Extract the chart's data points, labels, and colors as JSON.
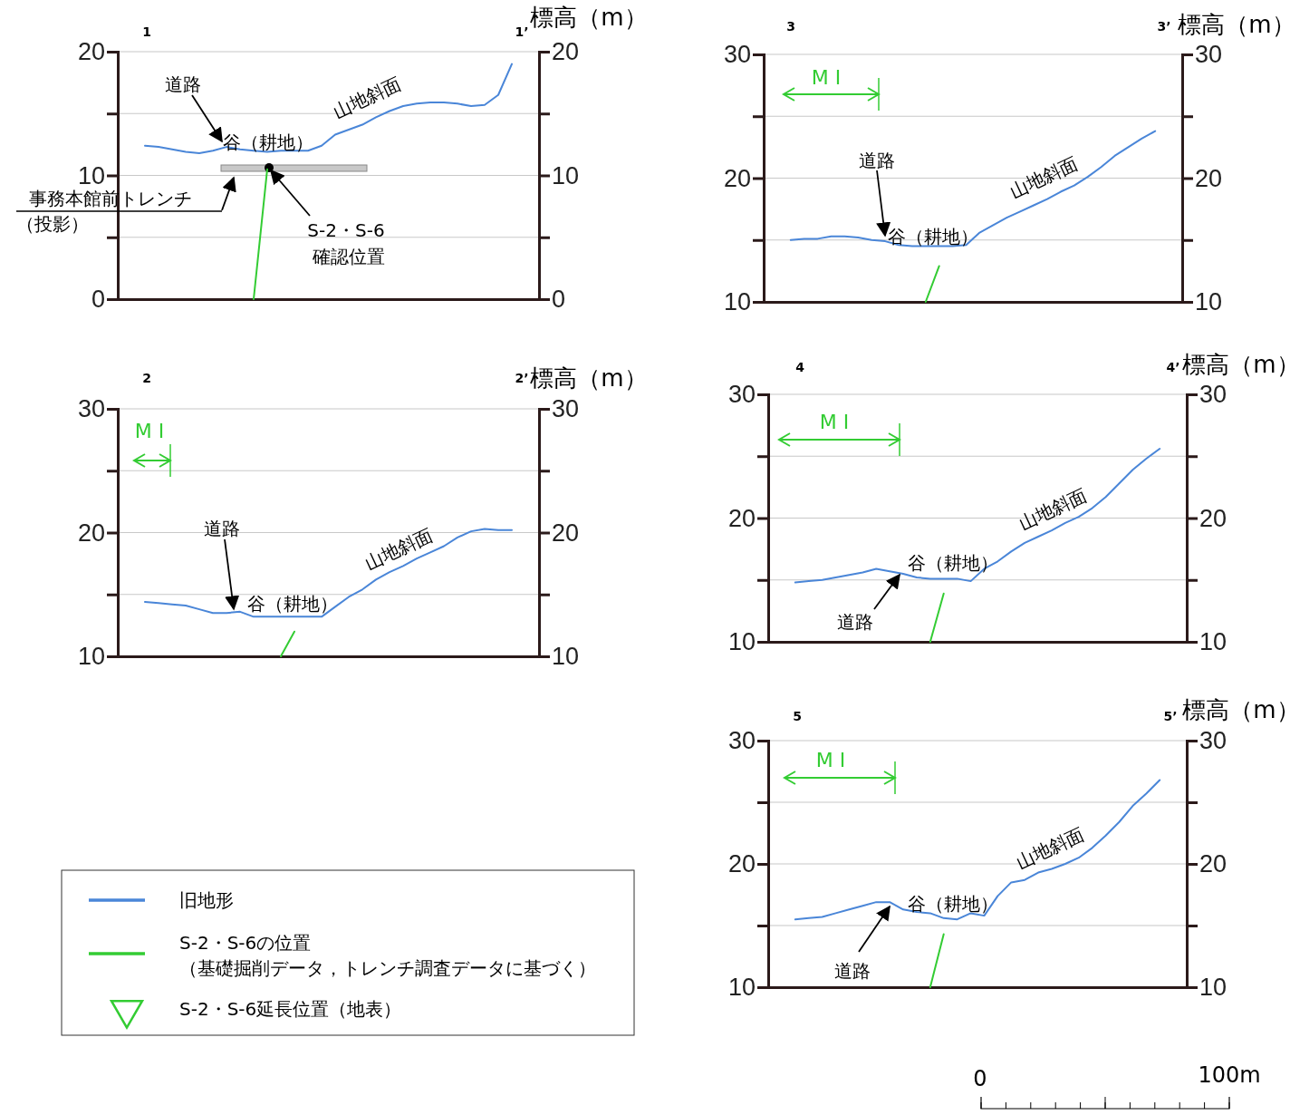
{
  "chart_data": [
    {
      "type": "line",
      "y2label": "標高（m）",
      "categories": [
        null,
        null,
        null,
        null,
        null,
        null,
        null,
        null,
        null,
        null,
        null,
        null,
        null,
        null,
        null,
        null,
        null,
        null,
        null,
        null,
        null,
        null,
        null,
        null,
        null,
        null,
        null,
        null,
        null,
        null,
        null,
        null
      ],
      "series": [
        {
          "name": "旧地形",
          "color": "#4a86d8",
          "values": [
            null,
            null,
            12.4,
            12.3,
            12.1,
            11.9,
            11.8,
            12.0,
            12.3,
            12.1,
            12.0,
            11.9,
            12.0,
            12.0,
            12.0,
            12.4,
            13.3,
            13.7,
            14.1,
            14.7,
            15.2,
            15.6,
            15.8,
            15.9,
            15.9,
            15.8,
            15.6,
            15.7,
            16.5,
            19.0,
            null,
            null
          ]
        },
        {
          "name": "S-2・S-6の位置（基礎掘削データ，トレンチ調査データに基づく）",
          "color": "#33cc33",
          "values": [
            null,
            null,
            null,
            null,
            null,
            null,
            null,
            null,
            null,
            null,
            0,
            10.5,
            null,
            null,
            null,
            null,
            null,
            null,
            null,
            null,
            null,
            null,
            null,
            null,
            null,
            null,
            null,
            null,
            null,
            null,
            null,
            null
          ]
        },
        {
          "name": "S-2・S-6延長位置（地表）",
          "color": "#33cc33",
          "type": "scatter",
          "marker": "triangle",
          "values": [
            null,
            null,
            null,
            null,
            null,
            null,
            null,
            null,
            null,
            null,
            null,
            null,
            null,
            null,
            null,
            null,
            null,
            null,
            null,
            null,
            null,
            null,
            null,
            null,
            null,
            null,
            null,
            null,
            null,
            null,
            null,
            null
          ]
        }
      ],
      "ylim": [
        0,
        20
      ],
      "yticks": [
        0,
        {
          "value": 5,
          "label": null
        },
        10,
        {
          "value": 15,
          "label": null
        },
        20
      ],
      "y2lim": [
        0,
        20
      ],
      "y2ticks": [
        0,
        {
          "value": 5,
          "label": null
        },
        10,
        {
          "value": 15,
          "label": null
        },
        20
      ],
      "grid": "y",
      "legend": "bottom left",
      "annotations": [
        "1",
        "1’",
        "道路",
        "谷（耕地）",
        "山地斜面",
        "事務本館前トレンチ",
        "（投影）",
        "S-2・S-6",
        "確認位置"
      ]
    },
    {
      "type": "line",
      "y2label": "標高（m）",
      "categories": [
        null,
        null,
        null,
        null,
        null,
        null,
        null,
        null,
        null,
        null,
        null,
        null,
        null,
        null,
        null,
        null,
        null,
        null,
        null,
        null,
        null,
        null,
        null,
        null,
        null,
        null,
        null,
        null,
        null,
        null,
        null,
        null
      ],
      "series": [
        {
          "color": "#4a86d8",
          "values": [
            null,
            null,
            14.4,
            14.3,
            14.2,
            14.1,
            13.8,
            13.5,
            13.5,
            13.6,
            13.2,
            13.2,
            13.2,
            13.2,
            13.2,
            13.2,
            14.0,
            14.8,
            15.4,
            16.2,
            16.8,
            17.3,
            17.9,
            18.4,
            18.9,
            19.6,
            20.1,
            20.3,
            20.2,
            20.2,
            null,
            null
          ]
        },
        {
          "color": "#33cc33",
          "values": [
            null,
            null,
            null,
            null,
            null,
            null,
            null,
            null,
            null,
            null,
            null,
            null,
            10,
            12.0,
            null,
            null,
            null,
            null,
            null,
            null,
            null,
            null,
            null,
            null,
            null,
            null,
            null,
            null,
            null,
            null,
            null,
            null
          ]
        }
      ],
      "ylim": [
        10,
        30
      ],
      "yticks": [
        10,
        {
          "value": 15,
          "label": null
        },
        20,
        {
          "value": 25,
          "label": null
        },
        30
      ],
      "y2lim": [
        10,
        30
      ],
      "y2ticks": [
        10,
        {
          "value": 15,
          "label": null
        },
        20,
        {
          "value": 25,
          "label": null
        },
        30
      ],
      "grid": "y",
      "annotations": [
        "2",
        "2’",
        "道路",
        "谷（耕地）",
        "山地斜面",
        "M I"
      ]
    },
    {
      "type": "line",
      "y2label": "標高（m）",
      "categories": [
        null,
        null,
        null,
        null,
        null,
        null,
        null,
        null,
        null,
        null,
        null,
        null,
        null,
        null,
        null,
        null,
        null,
        null,
        null,
        null,
        null,
        null,
        null,
        null,
        null,
        null,
        null,
        null,
        null,
        null,
        null,
        null
      ],
      "series": [
        {
          "color": "#4a86d8",
          "values": [
            null,
            null,
            15.0,
            15.1,
            15.1,
            15.3,
            15.3,
            15.2,
            15.0,
            14.9,
            14.6,
            14.5,
            14.5,
            14.5,
            14.5,
            14.6,
            15.6,
            16.2,
            16.8,
            17.3,
            17.8,
            18.3,
            18.9,
            19.4,
            20.1,
            20.9,
            21.8,
            22.5,
            23.2,
            23.8,
            null,
            null
          ]
        },
        {
          "color": "#33cc33",
          "values": [
            null,
            null,
            null,
            null,
            null,
            null,
            null,
            null,
            null,
            null,
            null,
            null,
            10,
            12.9,
            null,
            null,
            null,
            null,
            null,
            null,
            null,
            null,
            null,
            null,
            null,
            null,
            null,
            null,
            null,
            null,
            null,
            null
          ]
        }
      ],
      "ylim": [
        10,
        30
      ],
      "yticks": [
        10,
        {
          "value": 15,
          "label": null
        },
        20,
        {
          "value": 25,
          "label": null
        },
        30
      ],
      "y2lim": [
        10,
        30
      ],
      "y2ticks": [
        10,
        {
          "value": 15,
          "label": null
        },
        20,
        {
          "value": 25,
          "label": null
        },
        30
      ],
      "grid": "y",
      "annotations": [
        "3",
        "3’",
        "道路",
        "谷（耕地）",
        "山地斜面",
        "M I"
      ]
    },
    {
      "type": "line",
      "y2label": "標高（m）",
      "categories": [
        null,
        null,
        null,
        null,
        null,
        null,
        null,
        null,
        null,
        null,
        null,
        null,
        null,
        null,
        null,
        null,
        null,
        null,
        null,
        null,
        null,
        null,
        null,
        null,
        null,
        null,
        null,
        null,
        null,
        null,
        null,
        null
      ],
      "series": [
        {
          "color": "#4a86d8",
          "values": [
            null,
            null,
            14.8,
            14.9,
            15.0,
            15.2,
            15.4,
            15.6,
            15.9,
            15.7,
            15.5,
            15.2,
            15.1,
            15.1,
            15.1,
            14.9,
            15.9,
            16.5,
            17.3,
            18.0,
            18.5,
            19.0,
            19.6,
            20.1,
            20.8,
            21.7,
            22.8,
            23.9,
            24.8,
            25.6,
            null,
            null
          ]
        },
        {
          "color": "#33cc33",
          "values": [
            null,
            null,
            null,
            null,
            null,
            null,
            null,
            null,
            null,
            null,
            null,
            null,
            10,
            13.9,
            null,
            null,
            null,
            null,
            null,
            null,
            null,
            null,
            null,
            null,
            null,
            null,
            null,
            null,
            null,
            null,
            null,
            null
          ]
        }
      ],
      "ylim": [
        10,
        30
      ],
      "yticks": [
        10,
        {
          "value": 15,
          "label": null
        },
        20,
        {
          "value": 25,
          "label": null
        },
        30
      ],
      "y2lim": [
        10,
        30
      ],
      "y2ticks": [
        10,
        {
          "value": 15,
          "label": null
        },
        20,
        {
          "value": 25,
          "label": null
        },
        30
      ],
      "grid": "y",
      "annotations": [
        "4",
        "4’",
        "谷（耕地）",
        "道路",
        "山地斜面",
        "M I"
      ]
    },
    {
      "type": "line",
      "y2label": "標高（m）",
      "categories": [
        null,
        null,
        null,
        null,
        null,
        null,
        null,
        null,
        null,
        null,
        null,
        null,
        null,
        null,
        null,
        null,
        null,
        null,
        null,
        null,
        null,
        null,
        null,
        null,
        null,
        null,
        null,
        null,
        null,
        null,
        null,
        null
      ],
      "series": [
        {
          "color": "#4a86d8",
          "values": [
            null,
            null,
            15.5,
            15.6,
            15.7,
            16.0,
            16.3,
            16.6,
            16.9,
            16.9,
            16.3,
            16.1,
            16.0,
            15.6,
            15.5,
            16.0,
            15.8,
            17.4,
            18.5,
            18.7,
            19.3,
            19.6,
            20.0,
            20.5,
            21.3,
            22.3,
            23.4,
            24.7,
            25.7,
            26.8,
            null,
            null
          ]
        },
        {
          "color": "#33cc33",
          "values": [
            null,
            null,
            null,
            null,
            null,
            null,
            null,
            null,
            null,
            null,
            null,
            null,
            10,
            14.3,
            null,
            null,
            null,
            null,
            null,
            null,
            null,
            null,
            null,
            null,
            null,
            null,
            null,
            null,
            null,
            null,
            null,
            null
          ]
        }
      ],
      "ylim": [
        10,
        30
      ],
      "yticks": [
        10,
        {
          "value": 15,
          "label": null
        },
        20,
        {
          "value": 25,
          "label": null
        },
        30
      ],
      "y2lim": [
        10,
        30
      ],
      "y2ticks": [
        10,
        {
          "value": 15,
          "label": null
        },
        20,
        {
          "value": 25,
          "label": null
        },
        30
      ],
      "grid": "y",
      "annotations": [
        "5",
        "5’",
        "谷（耕地）",
        "道路",
        "山地斜面",
        "M I",
        "0",
        "100m"
      ]
    }
  ]
}
